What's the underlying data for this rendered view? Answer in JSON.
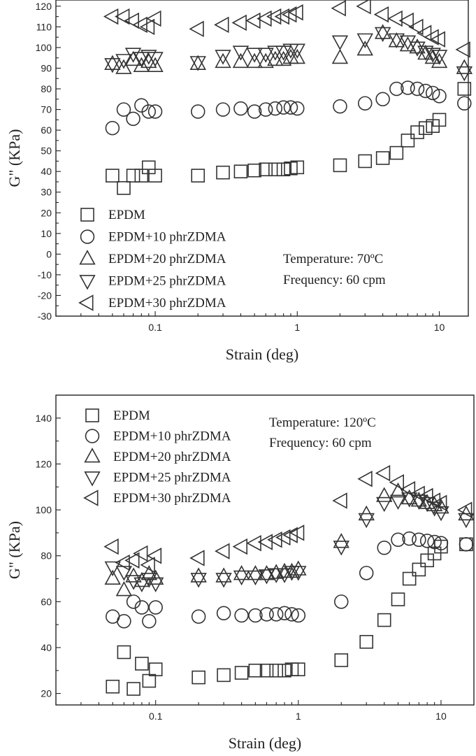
{
  "chart_data": [
    {
      "type": "scatter",
      "xscale": "log",
      "xlim": [
        0.02,
        16
      ],
      "ylim": [
        -30,
        123
      ],
      "xlabel": "Strain (deg)",
      "ylabel": "G\" (KPa)",
      "xticks": [
        {
          "v": 0.1,
          "label": "0.1"
        },
        {
          "v": 1,
          "label": "1"
        },
        {
          "v": 10,
          "label": "10"
        }
      ],
      "yticks": [
        -30,
        -20,
        -10,
        0,
        10,
        20,
        30,
        40,
        50,
        60,
        70,
        80,
        90,
        100,
        110,
        120
      ],
      "legend_position": "bottom-left",
      "annotations": [
        "Temperature: 70ºC",
        "Frequency: 60 cpm"
      ],
      "series": [
        {
          "name": "EPDM",
          "marker": "square",
          "x": [
            0.05,
            0.06,
            0.07,
            0.08,
            0.09,
            0.1,
            0.2,
            0.3,
            0.4,
            0.5,
            0.6,
            0.7,
            0.8,
            0.9,
            1,
            2,
            3,
            4,
            5,
            6,
            7,
            8,
            9,
            10,
            15
          ],
          "y": [
            38,
            32,
            38,
            38,
            42,
            38,
            38,
            39.5,
            40,
            40.5,
            41,
            41,
            41,
            41.5,
            42,
            43,
            45,
            46.5,
            49,
            55,
            59,
            61,
            62,
            65,
            80
          ]
        },
        {
          "name": "EPDM+10 phrZDMA",
          "marker": "circle",
          "x": [
            0.05,
            0.06,
            0.07,
            0.08,
            0.09,
            0.1,
            0.2,
            0.3,
            0.4,
            0.5,
            0.6,
            0.7,
            0.8,
            0.9,
            1,
            2,
            3,
            4,
            5,
            6,
            7,
            8,
            9,
            10,
            15
          ],
          "y": [
            61,
            70,
            65.5,
            72,
            69,
            69,
            69,
            70,
            70.5,
            69,
            70,
            70.5,
            71,
            71,
            70.5,
            71.5,
            73,
            75,
            80,
            80.5,
            80,
            79,
            78,
            76.5,
            73
          ]
        },
        {
          "name": "EPDM+20 phrZDMA",
          "marker": "triangle-up",
          "x": [
            0.05,
            0.06,
            0.07,
            0.08,
            0.09,
            0.1,
            0.2,
            0.3,
            0.4,
            0.5,
            0.6,
            0.7,
            0.8,
            0.9,
            1,
            2,
            3,
            4,
            5,
            6,
            7,
            8,
            9,
            10,
            15
          ],
          "y": [
            92,
            90,
            94,
            91,
            93,
            91,
            92,
            93,
            93,
            93,
            93,
            94,
            94,
            95,
            95,
            95,
            99,
            107,
            103,
            101,
            100,
            97,
            95,
            93,
            90
          ]
        },
        {
          "name": "EPDM+25 phrZDMA",
          "marker": "triangle-down",
          "x": [
            0.05,
            0.06,
            0.07,
            0.08,
            0.09,
            0.1,
            0.2,
            0.3,
            0.4,
            0.5,
            0.6,
            0.7,
            0.8,
            0.9,
            1,
            2,
            3,
            4,
            5,
            6,
            7,
            8,
            9,
            10,
            15
          ],
          "y": [
            92,
            94,
            97,
            95,
            96,
            95,
            93,
            96,
            98,
            97,
            97,
            98,
            98,
            99,
            99,
            103,
            104,
            107,
            104,
            103,
            100,
            98,
            97,
            96,
            88
          ]
        },
        {
          "name": "EPDM+30 phrZDMA",
          "marker": "triangle-left",
          "x": [
            0.05,
            0.06,
            0.07,
            0.08,
            0.09,
            0.1,
            0.2,
            0.3,
            0.4,
            0.5,
            0.6,
            0.7,
            0.8,
            0.9,
            1,
            2,
            3,
            4,
            5,
            6,
            7,
            8,
            9,
            10,
            15
          ],
          "y": [
            115,
            115,
            113,
            111,
            110,
            114,
            109,
            111,
            112,
            113,
            114,
            115,
            115,
            116,
            117,
            119,
            120,
            116,
            114,
            113,
            110,
            107,
            105,
            104,
            99
          ]
        }
      ]
    },
    {
      "type": "scatter",
      "xscale": "log",
      "xlim": [
        0.02,
        17
      ],
      "ylim": [
        15,
        150
      ],
      "xlabel": "Strain (deg)",
      "ylabel": "G\" (KPa)",
      "xticks": [
        {
          "v": 0.1,
          "label": "0.1"
        },
        {
          "v": 1,
          "label": "1"
        },
        {
          "v": 10,
          "label": "10"
        }
      ],
      "yticks": [
        20,
        40,
        60,
        80,
        100,
        120,
        140
      ],
      "legend_position": "top-left",
      "annotations": [
        "Temperature: 120ºC",
        "Frequency: 60 cpm"
      ],
      "series": [
        {
          "name": "EPDM",
          "marker": "square",
          "x": [
            0.05,
            0.06,
            0.07,
            0.08,
            0.09,
            0.1,
            0.2,
            0.3,
            0.4,
            0.5,
            0.6,
            0.7,
            0.8,
            0.9,
            1,
            2,
            3,
            4,
            5,
            6,
            7,
            8,
            9,
            10,
            15
          ],
          "y": [
            23,
            38,
            22,
            33,
            25.5,
            30.5,
            27,
            28,
            29,
            30,
            30,
            30,
            30,
            30.5,
            30.5,
            34.5,
            42.5,
            52,
            61,
            70,
            74,
            78,
            81,
            84,
            85
          ]
        },
        {
          "name": "EPDM+10 phrZDMA",
          "marker": "circle",
          "x": [
            0.05,
            0.06,
            0.07,
            0.08,
            0.09,
            0.1,
            0.2,
            0.3,
            0.4,
            0.5,
            0.6,
            0.7,
            0.8,
            0.9,
            1,
            2,
            3,
            4,
            5,
            6,
            7,
            8,
            9,
            10,
            15
          ],
          "y": [
            53.5,
            51.5,
            60,
            57.5,
            51.5,
            57.5,
            53.5,
            55,
            54,
            54,
            54.5,
            54.5,
            55,
            54.5,
            54,
            60,
            72.5,
            83.5,
            87,
            87.5,
            87,
            86.5,
            86,
            85.5,
            85
          ]
        },
        {
          "name": "EPDM+20 phrZDMA",
          "marker": "triangle-up",
          "x": [
            0.05,
            0.06,
            0.07,
            0.08,
            0.09,
            0.1,
            0.2,
            0.3,
            0.4,
            0.5,
            0.6,
            0.7,
            0.8,
            0.9,
            1,
            2,
            3,
            4,
            5,
            6,
            7,
            8,
            9,
            10,
            15
          ],
          "y": [
            70,
            65,
            71,
            69,
            72,
            70,
            71,
            71,
            72,
            72,
            72,
            72.5,
            73,
            73,
            74,
            86,
            98,
            106,
            108,
            105,
            104,
            103,
            102,
            101,
            98
          ]
        },
        {
          "name": "EPDM+25 phrZDMA",
          "marker": "triangle-down",
          "x": [
            0.05,
            0.06,
            0.07,
            0.08,
            0.09,
            0.1,
            0.2,
            0.3,
            0.4,
            0.5,
            0.6,
            0.7,
            0.8,
            0.9,
            1,
            2,
            3,
            4,
            5,
            6,
            7,
            8,
            9,
            10,
            15
          ],
          "y": [
            75,
            73,
            69,
            68,
            70,
            68,
            70,
            70,
            71,
            71,
            71.5,
            72,
            72,
            73,
            73,
            84,
            96,
            103,
            104,
            105,
            104,
            103,
            101,
            99,
            96
          ]
        },
        {
          "name": "EPDM+30 phrZDMA",
          "marker": "triangle-left",
          "x": [
            0.05,
            0.06,
            0.07,
            0.08,
            0.09,
            0.1,
            0.2,
            0.3,
            0.4,
            0.5,
            0.6,
            0.7,
            0.8,
            0.9,
            1,
            2,
            3,
            4,
            5,
            6,
            7,
            8,
            9,
            10,
            15
          ],
          "y": [
            84,
            77,
            78,
            81,
            76,
            80,
            79,
            82,
            84,
            85.5,
            86,
            87,
            88,
            89,
            90,
            104,
            113.5,
            116,
            112,
            109,
            107,
            106,
            104,
            103,
            100
          ]
        }
      ]
    }
  ]
}
